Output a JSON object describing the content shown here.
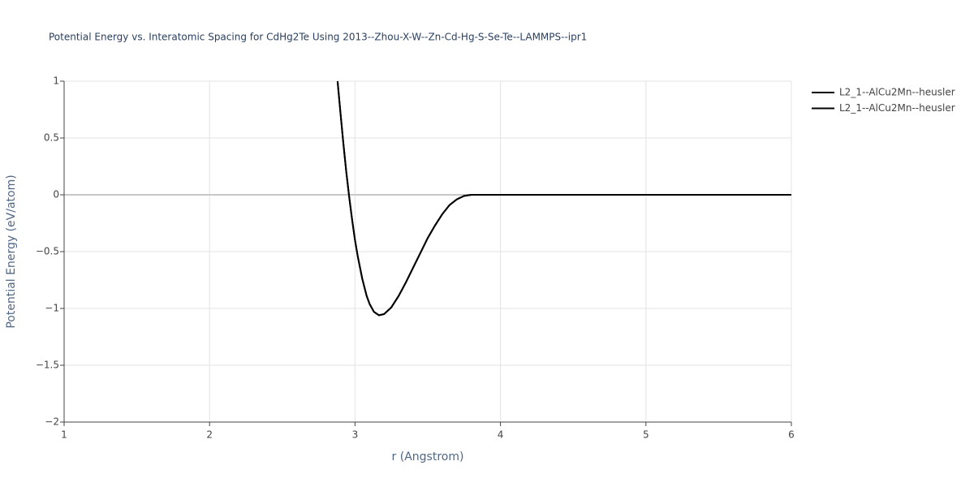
{
  "chart_data": {
    "type": "line",
    "title": "Potential Energy vs. Interatomic Spacing for CdHg2Te Using 2013--Zhou-X-W--Zn-Cd-Hg-S-Se-Te--LAMMPS--ipr1",
    "x_label": "r (Angstrom)",
    "y_label": "Potential Energy (eV/atom)",
    "x": [
      2.88,
      2.9,
      2.92,
      2.94,
      2.96,
      2.98,
      3.0,
      3.02,
      3.05,
      3.08,
      3.1,
      3.13,
      3.165,
      3.2,
      3.25,
      3.3,
      3.35,
      3.4,
      3.45,
      3.5,
      3.55,
      3.6,
      3.65,
      3.7,
      3.75,
      3.8,
      4,
      5,
      6
    ],
    "series": [
      {
        "name": "L2_1--AlCu2Mn--heusler",
        "color": "#000000",
        "values": [
          1.0,
          0.72,
          0.45,
          0.2,
          -0.02,
          -0.22,
          -0.4,
          -0.55,
          -0.74,
          -0.89,
          -0.96,
          -1.03,
          -1.06,
          -1.05,
          -0.99,
          -0.89,
          -0.77,
          -0.64,
          -0.51,
          -0.38,
          -0.27,
          -0.17,
          -0.09,
          -0.04,
          -0.01,
          0,
          0,
          0,
          0
        ]
      },
      {
        "name": "L2_1--AlCu2Mn--heusler",
        "color": "#000000",
        "values": [
          1.0,
          0.72,
          0.45,
          0.2,
          -0.02,
          -0.22,
          -0.4,
          -0.55,
          -0.74,
          -0.89,
          -0.96,
          -1.03,
          -1.06,
          -1.05,
          -0.99,
          -0.89,
          -0.77,
          -0.64,
          -0.51,
          -0.38,
          -0.27,
          -0.17,
          -0.09,
          -0.04,
          -0.01,
          0,
          0,
          0,
          0
        ]
      }
    ],
    "xlim": [
      1,
      6
    ],
    "xticks": [
      1,
      2,
      3,
      4,
      5,
      6
    ],
    "ylim": [
      -2,
      1
    ],
    "yticks": [
      {
        "value": -2,
        "label": "−2"
      },
      {
        "value": -1.5,
        "label": "−1.5"
      },
      {
        "value": -1,
        "label": "−1"
      },
      {
        "value": -0.5,
        "label": "−0.5"
      },
      0,
      0.5,
      1
    ],
    "grid": true,
    "legend": "top-right"
  }
}
